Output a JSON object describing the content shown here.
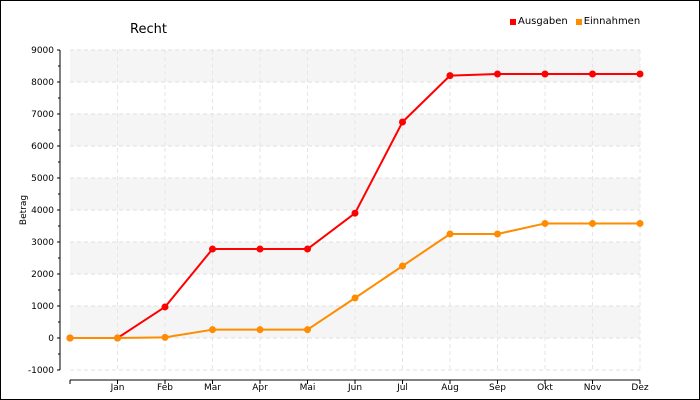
{
  "chart_data": {
    "type": "line",
    "title": "Recht",
    "xlabel": "",
    "ylabel": "Betrag",
    "categories": [
      "",
      "Jan",
      "Feb",
      "Mar",
      "Apr",
      "Mai",
      "Jun",
      "Jul",
      "Aug",
      "Sep",
      "Okt",
      "Nov",
      "Dez"
    ],
    "ylim": [
      -1000,
      9000
    ],
    "yticks": [
      -1000,
      0,
      1000,
      2000,
      3000,
      4000,
      5000,
      6000,
      7000,
      8000,
      9000
    ],
    "grid": true,
    "legend_position": "top-right",
    "series": [
      {
        "name": "Ausgaben",
        "color": "#ff0000",
        "values": [
          0,
          0,
          970,
          2780,
          2780,
          2780,
          3900,
          6750,
          8200,
          8250,
          8250,
          8250,
          8250
        ]
      },
      {
        "name": "Einnahmen",
        "color": "#ff8c00",
        "values": [
          0,
          0,
          20,
          260,
          260,
          260,
          1250,
          2250,
          3250,
          3250,
          3580,
          3580,
          3580
        ]
      }
    ]
  }
}
